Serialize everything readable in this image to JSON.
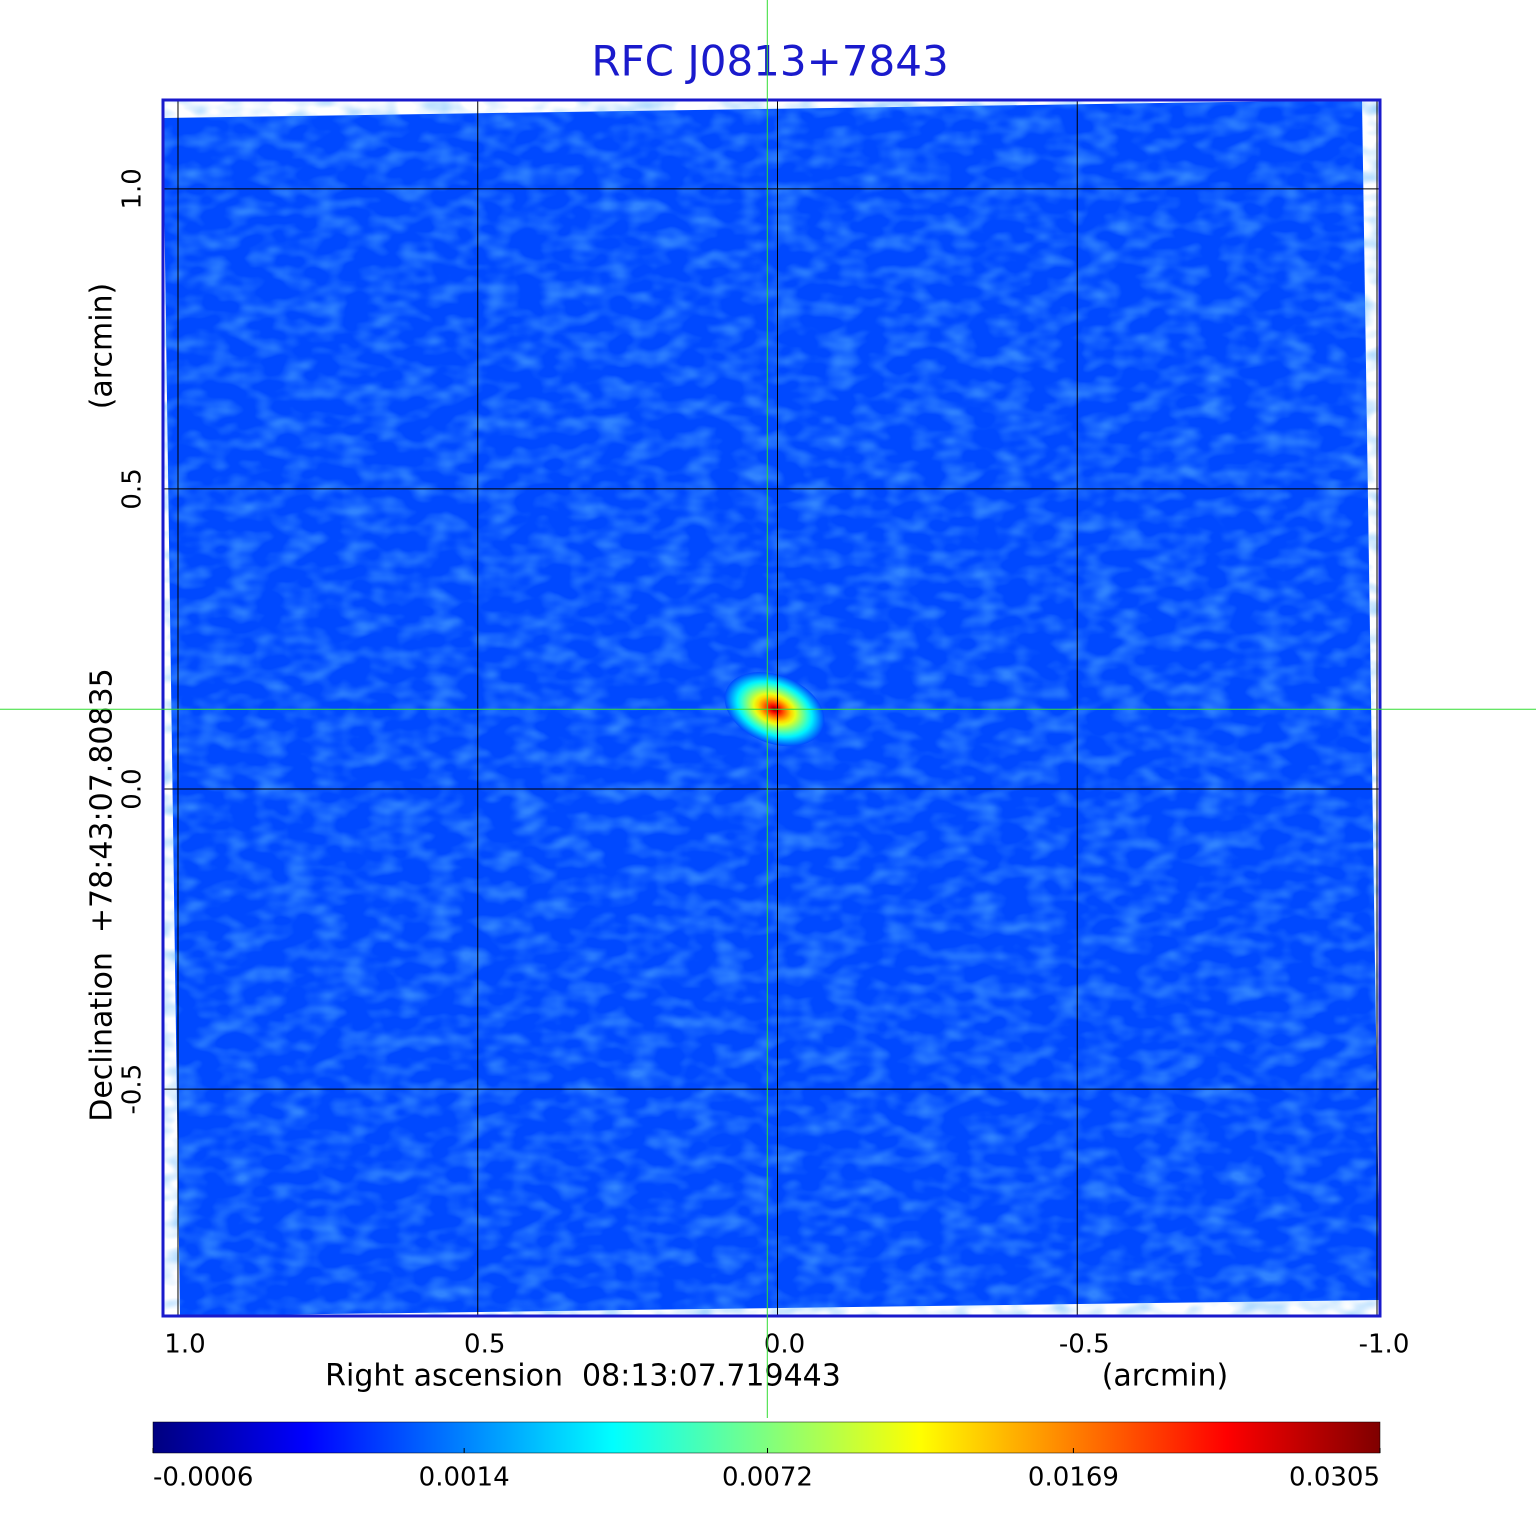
{
  "chart_data": {
    "type": "image",
    "title": "RFC J0813+7843",
    "xlabel": "Right ascension  08:13:07.719443",
    "xunit": "(arcmin)",
    "ylabel": "Declination  +78:43:07.80835",
    "yunit": "(arcmin)",
    "xlim": [
      1.025,
      -1.005
    ],
    "ylim": [
      -0.878,
      1.148
    ],
    "xticks": [
      {
        "value": 1,
        "label": "1.0"
      },
      {
        "value": 0.5,
        "label": "0.5"
      },
      {
        "value": 0,
        "label": "0.0"
      },
      {
        "value": -0.5,
        "label": "-0.5"
      },
      {
        "value": -1,
        "label": "-1.0"
      }
    ],
    "yticks": [
      {
        "value": 1,
        "label": "1.0"
      },
      {
        "value": 0.5,
        "label": "0.5"
      },
      {
        "value": 0,
        "label": "0.0"
      },
      {
        "value": -0.5,
        "label": "-0.5"
      }
    ],
    "grid": true,
    "source": {
      "x": 0.005,
      "y": 0.133,
      "peak": 0.0305
    },
    "background_level": 0.0006,
    "crosshair": {
      "x": 0.017,
      "y": 0.133,
      "color": "#33dd33"
    },
    "colormap": [
      "#00007f",
      "#0000ff",
      "#007fff",
      "#00ffff",
      "#7fff7f",
      "#ffff00",
      "#ff7f00",
      "#ff0000",
      "#7f0000"
    ],
    "color_scale": "sqrt",
    "colorbar_lim": [
      -0.0006,
      0.0305
    ],
    "colorbar_ticks": [
      -0.0006,
      0.0014,
      0.0072,
      0.0169,
      0.0305
    ]
  }
}
